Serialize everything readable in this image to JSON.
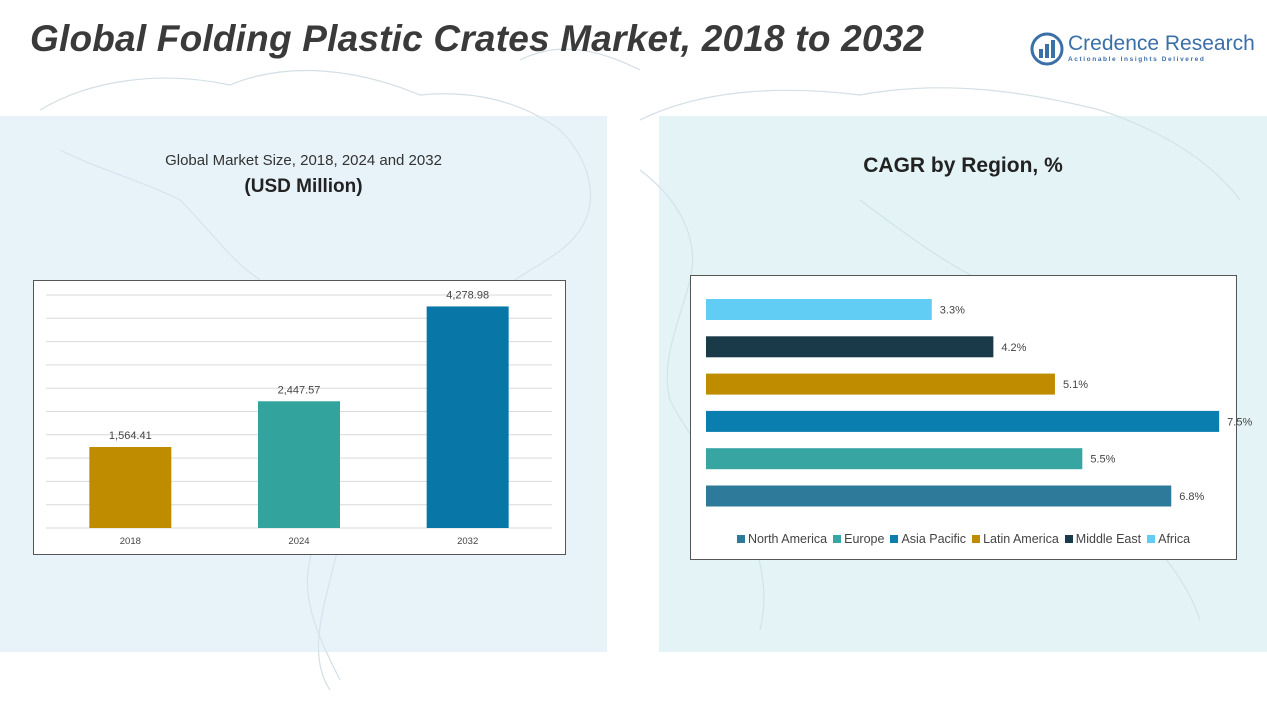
{
  "header": {
    "title": "Global Folding Plastic Crates Market, 2018 to 2032"
  },
  "logo": {
    "name": "Credence Research",
    "tagline": "Actionable Insights Delivered",
    "color": "#3b6fa8"
  },
  "chart_data": [
    {
      "type": "bar",
      "title": "Global Market Size, 2018, 2024 and 2032",
      "subtitle": "(USD Million)",
      "categories": [
        "2018",
        "2024",
        "2032"
      ],
      "values": [
        1564.41,
        2447.57,
        4278.98
      ],
      "value_labels": [
        "1,564.41",
        "2,447.57",
        "4,278.98"
      ],
      "colors": [
        "#bf8c00",
        "#33a39e",
        "#0877a8"
      ],
      "ylim": [
        0,
        4500
      ],
      "grid": true,
      "legend": "none"
    },
    {
      "type": "bar",
      "orientation": "horizontal",
      "title": "CAGR by Region, %",
      "categories": [
        "North America",
        "Europe",
        "Asia Pacific",
        "Latin America",
        "Middle East",
        "Africa"
      ],
      "values": [
        6.8,
        5.5,
        7.5,
        5.1,
        4.2,
        3.3
      ],
      "value_labels": [
        "6.8%",
        "5.5%",
        "7.5%",
        "5.1%",
        "4.2%",
        "3.3%"
      ],
      "colors": [
        "#2e7a9a",
        "#37a5a2",
        "#0a7eaf",
        "#bf8c00",
        "#1a3a4a",
        "#62cdf4"
      ],
      "xlim": [
        0,
        7.6
      ],
      "grid": false,
      "legend": "bottom"
    }
  ]
}
